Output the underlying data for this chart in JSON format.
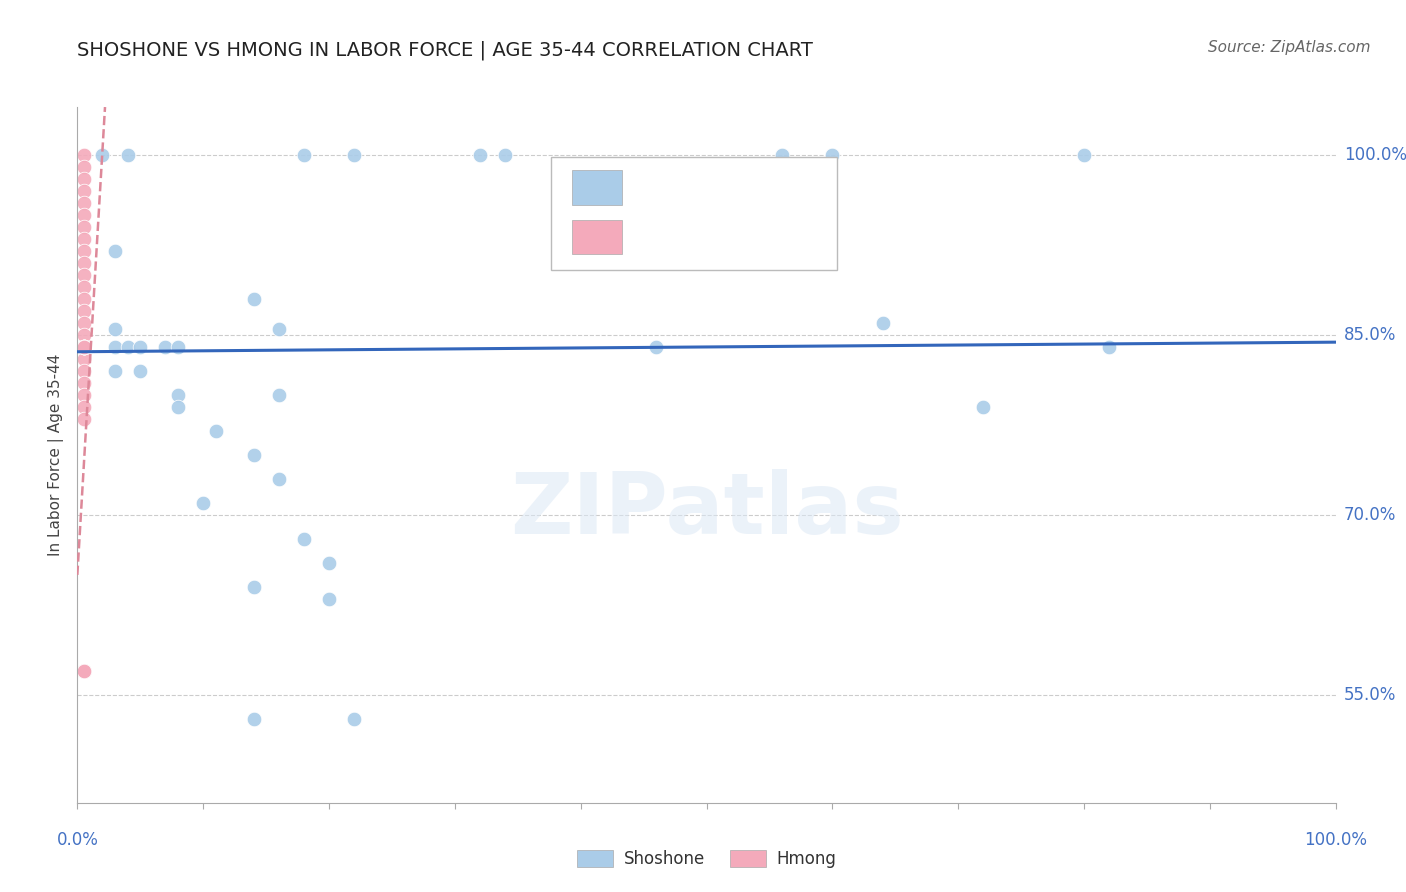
{
  "title": "SHOSHONE VS HMONG IN LABOR FORCE | AGE 35-44 CORRELATION CHART",
  "source": "Source: ZipAtlas.com",
  "ylabel": "In Labor Force | Age 35-44",
  "watermark": "ZIPatlas",
  "legend_blue_label": "Shoshone",
  "legend_pink_label": "Hmong",
  "xlim": [
    0.0,
    1.0
  ],
  "ylim": [
    0.46,
    1.04
  ],
  "ytick_labels": [
    "55.0%",
    "70.0%",
    "85.0%",
    "100.0%"
  ],
  "ytick_vals": [
    0.55,
    0.7,
    0.85,
    1.0
  ],
  "xtick_vals": [
    0.0,
    0.1,
    0.2,
    0.3,
    0.4,
    0.5,
    0.6,
    0.7,
    0.8,
    0.9,
    1.0
  ],
  "blue_x": [
    0.02,
    0.04,
    0.18,
    0.22,
    0.32,
    0.34,
    0.56,
    0.6,
    0.8,
    0.03,
    0.14,
    0.03,
    0.16,
    0.03,
    0.04,
    0.05,
    0.07,
    0.08,
    0.03,
    0.05,
    0.08,
    0.16,
    0.08,
    0.11,
    0.14,
    0.16,
    0.1,
    0.18,
    0.2,
    0.14,
    0.2,
    0.46,
    0.64,
    0.72,
    0.82,
    0.14,
    0.22
  ],
  "blue_y": [
    1.0,
    1.0,
    1.0,
    1.0,
    1.0,
    1.0,
    1.0,
    1.0,
    1.0,
    0.92,
    0.88,
    0.855,
    0.855,
    0.84,
    0.84,
    0.84,
    0.84,
    0.84,
    0.82,
    0.82,
    0.8,
    0.8,
    0.79,
    0.77,
    0.75,
    0.73,
    0.71,
    0.68,
    0.66,
    0.64,
    0.63,
    0.84,
    0.86,
    0.79,
    0.84,
    0.53,
    0.53
  ],
  "pink_x": [
    0.005,
    0.005,
    0.005,
    0.005,
    0.005,
    0.005,
    0.005,
    0.005,
    0.005,
    0.005,
    0.005,
    0.005,
    0.005,
    0.005,
    0.005,
    0.005,
    0.005,
    0.005,
    0.005,
    0.005,
    0.005,
    0.005,
    0.005,
    0.005,
    0.005,
    0.005,
    0.005,
    0.005,
    0.005,
    0.005,
    0.005,
    0.005,
    0.005,
    0.005,
    0.005,
    0.005,
    0.005,
    0.005
  ],
  "pink_y": [
    1.0,
    0.99,
    0.98,
    0.97,
    0.96,
    0.95,
    0.94,
    0.93,
    0.92,
    0.91,
    0.9,
    0.89,
    0.88,
    0.87,
    0.86,
    0.85,
    0.84,
    0.83,
    0.82,
    0.81,
    0.8,
    0.79,
    0.78,
    0.84,
    0.84,
    0.84,
    0.84,
    0.84,
    0.84,
    0.84,
    0.84,
    0.84,
    0.84,
    0.57,
    0.57,
    0.57,
    0.57,
    0.57
  ],
  "blue_trend_x": [
    0.0,
    1.0
  ],
  "blue_trend_y": [
    0.836,
    0.844
  ],
  "pink_trend_x": [
    0.0,
    0.022
  ],
  "pink_trend_y": [
    0.65,
    1.04
  ],
  "bg_color": "#ffffff",
  "grid_color": "#cccccc",
  "blue_color": "#aacce8",
  "pink_color": "#f4aabb",
  "blue_trend_color": "#3366bb",
  "pink_trend_color": "#dd8899",
  "title_fontsize": 14,
  "source_fontsize": 11,
  "axis_label_color": "#4472c4",
  "scatter_size": 110
}
